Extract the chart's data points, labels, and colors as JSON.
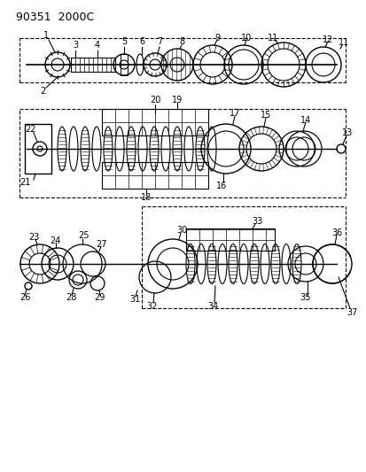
{
  "title": "90351  2000C",
  "bg_color": "#ffffff",
  "line_color": "#000000",
  "fig_width": 4.14,
  "fig_height": 5.33,
  "dpi": 100
}
